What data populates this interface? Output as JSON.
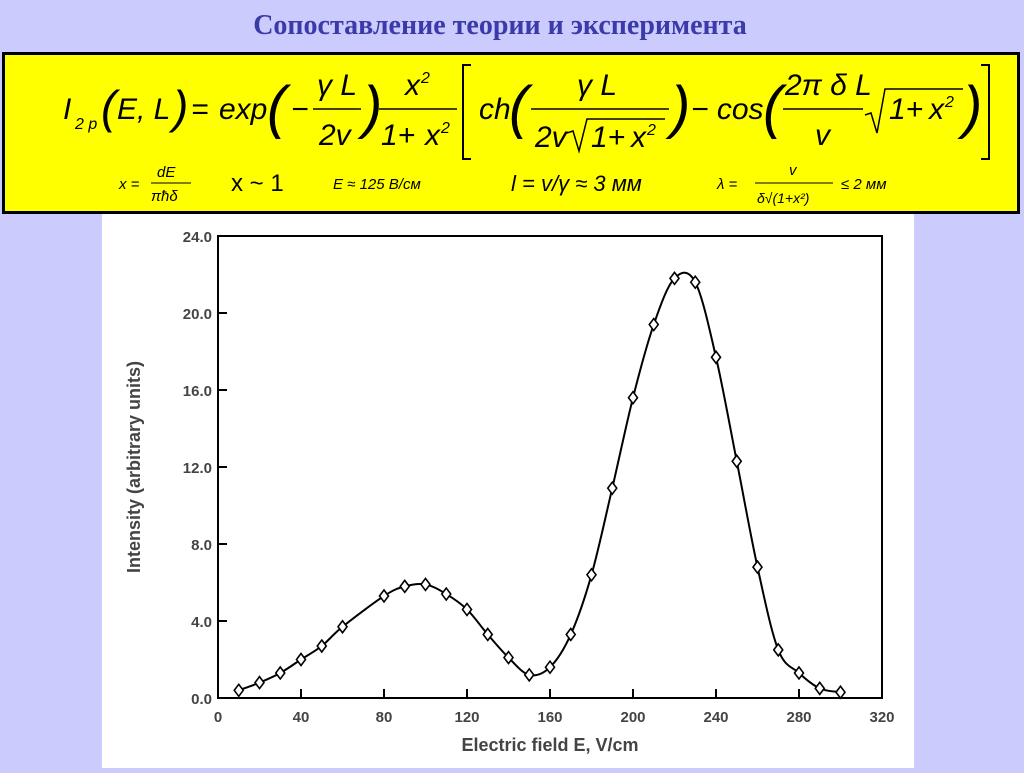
{
  "page": {
    "title": "Сопоставление теории и эксперимента"
  },
  "formula": {
    "main": "I₂ₚ(E,L) = exp(−γL/2v) · x²/(1+x²) · [ ch( γL / (2v√(1+x²)) ) − cos( (2πδL/v) √(1+x²) ) ]",
    "conditions": [
      "x = dE/πħδ",
      "x ~ 1",
      "E ≈ 125 В/см",
      "l = v/γ ≈ 3 мм",
      "λ = v/(δ√(1+x²)) ≤ 2 мм"
    ]
  },
  "colors": {
    "background": "#cccbfe",
    "title": "#3a3aa8",
    "formula_box": "#ffff00",
    "line": "#000000"
  },
  "chart_data": {
    "type": "line",
    "xlabel": "Electric field E, V/cm",
    "ylabel": "Intensity (arbitrary units)",
    "xlim": [
      0,
      320
    ],
    "ylim": [
      0,
      24
    ],
    "x_ticks": [
      "0",
      "40",
      "80",
      "120",
      "160",
      "200",
      "240",
      "280",
      "320"
    ],
    "y_ticks": [
      "0.0",
      "4.0",
      "8.0",
      "12.0",
      "16.0",
      "20.0",
      "24.0"
    ],
    "grid": false,
    "legend": "none",
    "series": [
      {
        "style": "line-with-diamond-markers",
        "x": [
          10,
          20,
          30,
          40,
          50,
          60,
          80,
          90,
          100,
          110,
          120,
          130,
          140,
          150,
          160,
          170,
          180,
          190,
          200,
          210,
          220,
          230,
          240,
          250,
          260,
          270,
          280,
          290,
          300
        ],
        "y": [
          0.4,
          0.8,
          1.3,
          2.0,
          2.7,
          3.7,
          5.3,
          5.8,
          5.9,
          5.4,
          4.6,
          3.3,
          2.1,
          1.2,
          1.6,
          3.3,
          6.4,
          10.9,
          15.6,
          19.4,
          21.8,
          21.6,
          17.7,
          12.3,
          6.8,
          2.5,
          1.3,
          0.5,
          0.3
        ]
      }
    ]
  }
}
